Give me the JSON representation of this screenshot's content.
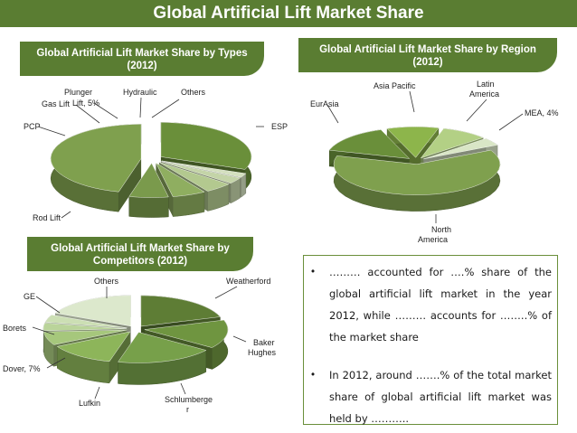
{
  "title": "Global Artificial Lift Market Share",
  "panels": {
    "types": {
      "title_line1": "Global Artificial Lift Market Share by Types",
      "title_line2": "(2012)"
    },
    "region": {
      "title_line1": "Global Artificial Lift Market Share by Region",
      "title_line2": "(2012)"
    },
    "competitors": {
      "title_line1": "Global Artificial Lift Market Share by",
      "title_line2": "Competitors (2012)"
    }
  },
  "chart_data": [
    {
      "type": "pie",
      "title": "Global Artificial Lift Market Share by Types (2012)",
      "slices": [
        {
          "label": "ESP",
          "value": 31
        },
        {
          "label": "Others",
          "value": 2
        },
        {
          "label": "Hydraulic",
          "value": 3
        },
        {
          "label": "Plunger Lift, 5%",
          "value": 5
        },
        {
          "label": "Gas Lift",
          "value": 6
        },
        {
          "label": "PCP",
          "value": 7
        },
        {
          "label": "Rod Lift",
          "value": 46
        }
      ],
      "colors": [
        "#6a8f3a",
        "#d4e0bf",
        "#c4d4a8",
        "#b3c98f",
        "#8fae60",
        "#7a9a4c",
        "#7fa04e"
      ]
    },
    {
      "type": "pie",
      "title": "Global Artificial Lift Market Share by Region (2012)",
      "slices": [
        {
          "label": "Asia Pacific",
          "value": 10
        },
        {
          "label": "Latin America",
          "value": 9
        },
        {
          "label": "MEA, 4%",
          "value": 4
        },
        {
          "label": "North America",
          "value": 62
        },
        {
          "label": "EurAsia",
          "value": 15
        }
      ],
      "colors": [
        "#8db54b",
        "#b3d085",
        "#d9e6c6",
        "#7fa04e",
        "#6a8f3a"
      ]
    },
    {
      "type": "pie",
      "title": "Global Artificial Lift Market Share by Competitors (2012)",
      "slices": [
        {
          "label": "Weatherford",
          "value": 20
        },
        {
          "label": "Baker Hughes",
          "value": 15
        },
        {
          "label": "Schlumberger",
          "value": 19
        },
        {
          "label": "Lufkin",
          "value": 13
        },
        {
          "label": "Dover, 7%",
          "value": 7
        },
        {
          "label": "Borets",
          "value": 4
        },
        {
          "label": "GE",
          "value": 4
        },
        {
          "label": "Others",
          "value": 18
        }
      ],
      "colors": [
        "#5e7d35",
        "#6f9540",
        "#77a04a",
        "#8db55a",
        "#a6c77c",
        "#bad49a",
        "#ccdfb4",
        "#dce8cc"
      ]
    }
  ],
  "bullets": [
    "……… accounted for ….% share of the global artificial lift market in the year 2012, while ……… accounts for ……..% of the market share",
    "In 2012, around …….% of the total market share of global artificial lift market was held by ……….."
  ]
}
